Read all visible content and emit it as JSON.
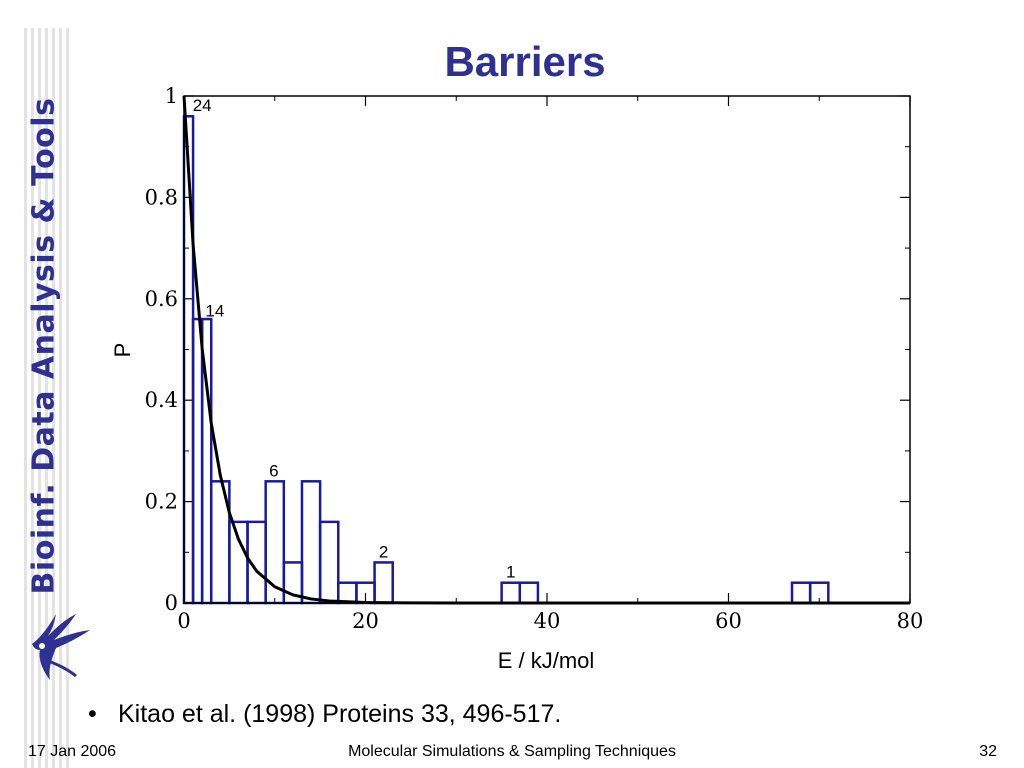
{
  "slide": {
    "title": "Barriers",
    "side_title": "Bioinf. Data Analysis & Tools",
    "bullet": "Kitao et al. (1998) Proteins 33, 496-517.",
    "footer": {
      "date": "17 Jan 2006",
      "course": "Molecular Simulations & Sampling Techniques",
      "page": "32"
    },
    "colors": {
      "accent": "#2e3192",
      "bars": "#1a1aa0",
      "curve": "#000000"
    },
    "logo_icon": "university-logo-icon"
  },
  "chart_data": {
    "type": "bar",
    "subtype": "histogram with fitted exponential curve",
    "title": "",
    "xlabel": "E / kJ/mol",
    "ylabel": "P",
    "xlim": [
      0,
      80
    ],
    "ylim": [
      0,
      1
    ],
    "xticks": [
      0,
      20,
      40,
      60,
      80
    ],
    "yticks": [
      0,
      0.2,
      0.4,
      0.6,
      0.8,
      1
    ],
    "ytick_labels": [
      "0",
      "0.2",
      "0.4",
      "0.6",
      "0.8",
      "1"
    ],
    "grid": false,
    "bin_width": 2,
    "bins": [
      {
        "x0": 0,
        "x1": 1,
        "value": 0.96
      },
      {
        "x0": 1,
        "x1": 2,
        "value": 0.56
      },
      {
        "x0": 2,
        "x1": 3,
        "value": 0.56
      },
      {
        "x0": 3,
        "x1": 5,
        "value": 0.24
      },
      {
        "x0": 5,
        "x1": 7,
        "value": 0.16
      },
      {
        "x0": 7,
        "x1": 9,
        "value": 0.16
      },
      {
        "x0": 9,
        "x1": 11,
        "value": 0.24
      },
      {
        "x0": 11,
        "x1": 13,
        "value": 0.08
      },
      {
        "x0": 13,
        "x1": 15,
        "value": 0.24
      },
      {
        "x0": 15,
        "x1": 17,
        "value": 0.16
      },
      {
        "x0": 17,
        "x1": 19,
        "value": 0.04
      },
      {
        "x0": 19,
        "x1": 21,
        "value": 0.04
      },
      {
        "x0": 21,
        "x1": 23,
        "value": 0.08
      },
      {
        "x0": 35,
        "x1": 37,
        "value": 0.04
      },
      {
        "x0": 37,
        "x1": 39,
        "value": 0.04
      },
      {
        "x0": 67,
        "x1": 69,
        "value": 0.04
      },
      {
        "x0": 69,
        "x1": 71,
        "value": 0.04
      }
    ],
    "count_labels": [
      {
        "text": "24",
        "x": 2.0,
        "y": 0.97
      },
      {
        "text": "14",
        "x": 3.4,
        "y": 0.565
      },
      {
        "text": "6",
        "x": 9.9,
        "y": 0.25
      },
      {
        "text": "2",
        "x": 22.0,
        "y": 0.09
      },
      {
        "text": "1",
        "x": 36.0,
        "y": 0.05
      }
    ],
    "curve": {
      "name": "",
      "formula": "P = exp(-E/2.9)",
      "x": [
        0,
        1,
        2,
        3,
        4,
        5,
        6,
        7,
        8,
        10,
        12,
        14,
        16,
        20,
        25,
        30,
        40,
        50,
        60,
        70,
        80
      ],
      "y": [
        1.0,
        0.708,
        0.502,
        0.355,
        0.252,
        0.178,
        0.126,
        0.089,
        0.063,
        0.032,
        0.016,
        0.008,
        0.004,
        0.001,
        0.0002,
        0.0,
        0.0,
        0.0,
        0.0,
        0.0,
        0.0
      ]
    }
  }
}
